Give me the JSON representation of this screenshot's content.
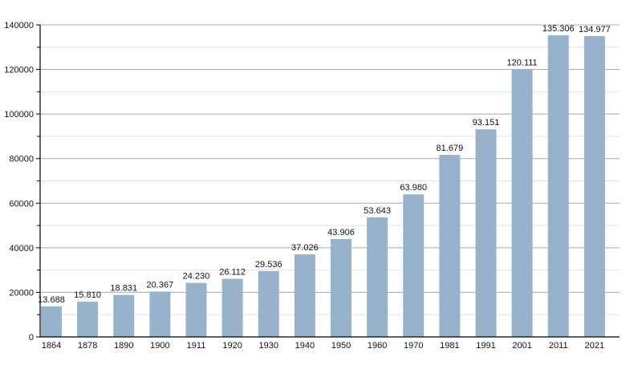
{
  "chart_data": {
    "type": "bar",
    "title": "",
    "xlabel": "",
    "ylabel": "",
    "ylim": [
      0,
      140000
    ],
    "y_major_step": 20000,
    "y_minor_step": 10000,
    "grid": true,
    "categories": [
      "1864",
      "1878",
      "1890",
      "1900",
      "1911",
      "1920",
      "1930",
      "1940",
      "1950",
      "1960",
      "1970",
      "1981",
      "1991",
      "2001",
      "2011",
      "2021"
    ],
    "values": [
      13688,
      15810,
      18831,
      20367,
      24230,
      26112,
      29536,
      37026,
      43906,
      53643,
      63980,
      81679,
      93151,
      120111,
      135306,
      134977
    ],
    "value_labels": [
      "13.688",
      "15.810",
      "18.831",
      "20.367",
      "24.230",
      "26.112",
      "29.536",
      "37.026",
      "43.906",
      "53.643",
      "63.980",
      "81.679",
      "93.151",
      "120.111",
      "135.306",
      "134.977"
    ],
    "y_tick_labels": [
      "0",
      "20000",
      "40000",
      "60000",
      "80000",
      "100000",
      "120000",
      "140000"
    ],
    "colors": {
      "bar": "#98b2cc",
      "major_grid": "#a8a8a8",
      "minor_grid": "#e2e2e2",
      "axis": "#000000"
    }
  }
}
